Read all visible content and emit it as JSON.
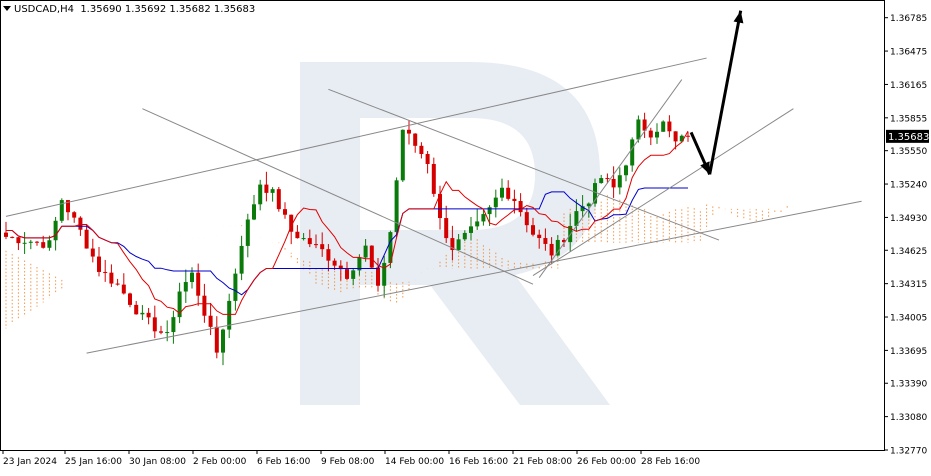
{
  "header": {
    "symbol": "USDCAD,H4",
    "ohlc": "1.35690 1.35692 1.35682 1.35683"
  },
  "price_badge": "1.35683",
  "colors": {
    "bull": "#0a7a0a",
    "bear": "#d40000",
    "tenkan": "#e00000",
    "kijun": "#0000cc",
    "kumo": "#f08020",
    "trendline": "#888888",
    "arrow": "#000000",
    "watermark": "#e8ecf3"
  },
  "chart_data": {
    "type": "candlestick",
    "symbol": "USDCAD",
    "timeframe": "H4",
    "ylim": [
      1.3277,
      1.3694
    ],
    "y_ticks": [
      "1.36785",
      "1.36475",
      "1.36165",
      "1.35855",
      "1.35550",
      "1.35240",
      "1.34930",
      "1.34625",
      "1.34315",
      "1.34005",
      "1.33695",
      "1.33390",
      "1.33080",
      "1.32770"
    ],
    "x_ticks": [
      "23 Jan 2024",
      "25 Jan 16:00",
      "30 Jan 08:00",
      "2 Feb 00:00",
      "6 Feb 16:00",
      "9 Feb 08:00",
      "14 Feb 00:00",
      "16 Feb 16:00",
      "21 Feb 08:00",
      "26 Feb 00:00",
      "28 Feb 16:00"
    ],
    "current_price": 1.35683,
    "candle_count": 111,
    "candle_range_start": "23 Jan 2024",
    "candle_range_end": "29 Feb 2024",
    "overall_low": 1.3359,
    "overall_high": 1.3597,
    "indicators": [
      "Ichimoku Kinko Hyo"
    ],
    "annotations": {
      "forecast": "small dip toward support near 1.3530, then rise toward 1.3685"
    }
  }
}
